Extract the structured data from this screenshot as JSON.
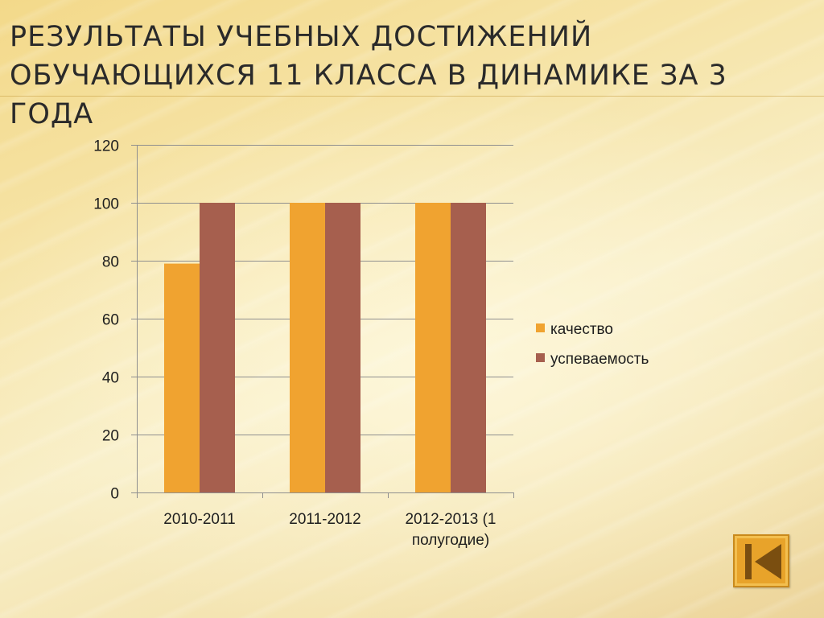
{
  "slide": {
    "title_line1": "РЕЗУЛЬТАТЫ УЧЕБНЫХ ДОСТИЖЕНИЙ",
    "title_line2": "ОБУЧАЮЩИХСЯ  11 КЛАССА В ДИНАМИКЕ  ЗА 3 ГОДА"
  },
  "chart_data": {
    "type": "bar",
    "categories": [
      "2010-2011",
      "2011-2012",
      "2012-2013 (1 полугодие)"
    ],
    "category_label_lines": [
      [
        "2010-2011"
      ],
      [
        "2011-2012"
      ],
      [
        "2012-2013 (1",
        "полугодие)"
      ]
    ],
    "series": [
      {
        "name": "качество",
        "values": [
          79,
          100,
          100
        ],
        "color": "#f0a330"
      },
      {
        "name": "успеваемость",
        "values": [
          100,
          100,
          100
        ],
        "color": "#a65f4e"
      }
    ],
    "yticks": [
      0,
      20,
      40,
      60,
      80,
      100,
      120
    ],
    "ylim": [
      0,
      120
    ],
    "grid": true,
    "legend_position": "right",
    "title": "",
    "xlabel": "",
    "ylabel": ""
  },
  "colors": {
    "gridline": "#8f8f8f",
    "axis": "#8f8f8f",
    "back_button_fill": "#e8a32a",
    "back_button_icon": "#7a4e10"
  },
  "icons": {
    "back_button": "skip-to-first-icon"
  }
}
